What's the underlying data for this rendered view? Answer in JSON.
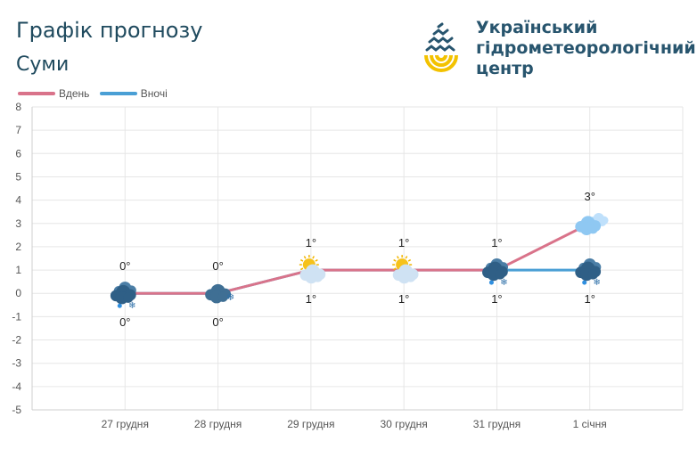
{
  "header": {
    "title": "Графік прогнозу",
    "city": "Суми",
    "org_line1": "Український",
    "org_line2": "гідрометеорологічний",
    "org_line3": "центр"
  },
  "legend": {
    "day_label": "Вдень",
    "night_label": "Вночі"
  },
  "colors": {
    "day": "#d9738a",
    "night": "#4a9fd5",
    "title": "#1f4a5e",
    "grid": "#e6e6e6"
  },
  "chart_data": {
    "type": "line",
    "categories": [
      "27 грудня",
      "28 грудня",
      "29 грудня",
      "30 грудня",
      "31 грудня",
      "1 січня"
    ],
    "series": [
      {
        "name": "Вдень",
        "values": [
          0,
          0,
          1,
          1,
          1,
          3
        ],
        "labels": [
          "0°",
          "0°",
          "1°",
          "1°",
          "1°",
          "3°"
        ]
      },
      {
        "name": "Вночі",
        "values": [
          0,
          0,
          1,
          1,
          1,
          1
        ],
        "labels": [
          "0°",
          "0°",
          "1°",
          "1°",
          "1°",
          "1°"
        ]
      }
    ],
    "weather_icons": [
      {
        "day": "cloud-snow-rain-icon",
        "night": "cloud-snow-rain-icon"
      },
      {
        "day": "cloud-snow-icon",
        "night": "cloud-snow-icon"
      },
      {
        "day": "sun-cloud-icon",
        "night": "sun-cloud-icon"
      },
      {
        "day": "sun-cloud-icon",
        "night": "sun-cloud-icon"
      },
      {
        "day": "cloud-snow-rain-icon",
        "night": "cloud-snow-rain-icon"
      },
      {
        "day": "cloudy-icon",
        "night": "cloud-snow-rain-icon"
      }
    ],
    "y_ticks": [
      "8",
      "7",
      "6",
      "5",
      "4",
      "3",
      "2",
      "1",
      "0",
      "-1",
      "-2",
      "-3",
      "-4",
      "-5"
    ],
    "ylim": [
      -5,
      8
    ],
    "grid": true,
    "legend_position": "top-left"
  }
}
